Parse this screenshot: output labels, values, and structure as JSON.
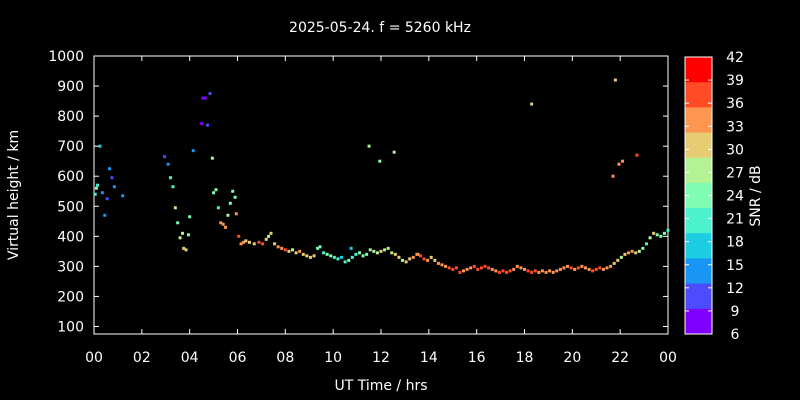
{
  "chart_data": {
    "type": "scatter",
    "title": "2025-05-24. f = 5260 kHz",
    "xlabel": "UT Time / hrs",
    "ylabel": "Virtual height / km",
    "xlim": [
      0,
      24
    ],
    "ylim": [
      75,
      1000
    ],
    "xticks": [
      "00",
      "02",
      "04",
      "06",
      "08",
      "10",
      "12",
      "14",
      "16",
      "18",
      "20",
      "22",
      "00"
    ],
    "yticks": [
      100,
      200,
      300,
      400,
      500,
      600,
      700,
      800,
      900,
      1000
    ],
    "colorbar": {
      "label": "SNR / dB",
      "ticks": [
        6,
        9,
        12,
        15,
        18,
        21,
        24,
        27,
        30,
        33,
        36,
        39,
        42
      ],
      "colors": [
        "#7f00ff",
        "#4c4cfd",
        "#1996f3",
        "#1ccde4",
        "#4cf2ce",
        "#7ffeb3",
        "#b3f295",
        "#e6cd73",
        "#ff964f",
        "#ff4c27",
        "#ff0000"
      ]
    },
    "grid": false,
    "points": [
      [
        0.05,
        540,
        21
      ],
      [
        0.1,
        560,
        24
      ],
      [
        0.15,
        570,
        22
      ],
      [
        0.25,
        700,
        18
      ],
      [
        0.35,
        545,
        15
      ],
      [
        0.45,
        470,
        15
      ],
      [
        0.55,
        525,
        12
      ],
      [
        0.65,
        625,
        13
      ],
      [
        0.75,
        595,
        12
      ],
      [
        0.85,
        565,
        13
      ],
      [
        1.2,
        535,
        14
      ],
      [
        2.95,
        665,
        11
      ],
      [
        3.1,
        640,
        13
      ],
      [
        3.2,
        595,
        20
      ],
      [
        3.3,
        565,
        22
      ],
      [
        3.4,
        495,
        27
      ],
      [
        3.5,
        445,
        23
      ],
      [
        3.6,
        395,
        28
      ],
      [
        3.7,
        410,
        27
      ],
      [
        3.75,
        360,
        29
      ],
      [
        3.85,
        355,
        29
      ],
      [
        3.95,
        405,
        25
      ],
      [
        4.0,
        465,
        24
      ],
      [
        4.15,
        685,
        14
      ],
      [
        4.5,
        775,
        9
      ],
      [
        4.55,
        860,
        8
      ],
      [
        4.65,
        860,
        8
      ],
      [
        4.75,
        770,
        11
      ],
      [
        4.85,
        875,
        10
      ],
      [
        4.95,
        660,
        27
      ],
      [
        5.0,
        545,
        25
      ],
      [
        5.1,
        555,
        24
      ],
      [
        5.2,
        495,
        22
      ],
      [
        5.3,
        445,
        33
      ],
      [
        5.4,
        440,
        35
      ],
      [
        5.5,
        430,
        33
      ],
      [
        5.6,
        470,
        27
      ],
      [
        5.7,
        510,
        25
      ],
      [
        5.8,
        550,
        24
      ],
      [
        5.9,
        530,
        24
      ],
      [
        5.95,
        475,
        33
      ],
      [
        6.05,
        400,
        38
      ],
      [
        6.15,
        375,
        35
      ],
      [
        6.25,
        380,
        34
      ],
      [
        6.35,
        385,
        32
      ],
      [
        6.5,
        380,
        31
      ],
      [
        6.7,
        375,
        32
      ],
      [
        6.9,
        380,
        37
      ],
      [
        7.05,
        375,
        38
      ],
      [
        7.2,
        390,
        30
      ],
      [
        7.3,
        400,
        28
      ],
      [
        7.4,
        410,
        29
      ],
      [
        7.55,
        375,
        31
      ],
      [
        7.7,
        365,
        34
      ],
      [
        7.85,
        360,
        35
      ],
      [
        8.0,
        355,
        36
      ],
      [
        8.15,
        350,
        30
      ],
      [
        8.3,
        355,
        28
      ],
      [
        8.45,
        345,
        32
      ],
      [
        8.6,
        350,
        34
      ],
      [
        8.75,
        340,
        31
      ],
      [
        8.9,
        335,
        29
      ],
      [
        9.05,
        330,
        32
      ],
      [
        9.2,
        335,
        30
      ],
      [
        9.35,
        360,
        24
      ],
      [
        9.45,
        365,
        23
      ],
      [
        9.6,
        345,
        22
      ],
      [
        9.75,
        340,
        25
      ],
      [
        9.9,
        335,
        23
      ],
      [
        10.05,
        330,
        21
      ],
      [
        10.2,
        325,
        20
      ],
      [
        10.35,
        330,
        18
      ],
      [
        10.5,
        315,
        20
      ],
      [
        10.65,
        320,
        23
      ],
      [
        10.8,
        330,
        22
      ],
      [
        10.95,
        340,
        20
      ],
      [
        11.1,
        345,
        23
      ],
      [
        11.25,
        335,
        24
      ],
      [
        11.4,
        340,
        25
      ],
      [
        11.55,
        355,
        26
      ],
      [
        11.7,
        350,
        27
      ],
      [
        11.85,
        345,
        28
      ],
      [
        12.0,
        350,
        29
      ],
      [
        12.15,
        355,
        28
      ],
      [
        12.3,
        360,
        27
      ],
      [
        12.45,
        345,
        26
      ],
      [
        12.6,
        340,
        29
      ],
      [
        12.75,
        330,
        30
      ],
      [
        12.9,
        320,
        28
      ],
      [
        13.05,
        315,
        29
      ],
      [
        13.2,
        325,
        31
      ],
      [
        13.35,
        330,
        33
      ],
      [
        13.5,
        340,
        35
      ],
      [
        13.65,
        335,
        37
      ],
      [
        13.8,
        325,
        36
      ],
      [
        13.95,
        320,
        33
      ],
      [
        14.1,
        330,
        29
      ],
      [
        14.25,
        320,
        31
      ],
      [
        14.4,
        310,
        33
      ],
      [
        14.55,
        305,
        34
      ],
      [
        14.7,
        300,
        35
      ],
      [
        14.85,
        295,
        37
      ],
      [
        15.0,
        290,
        37
      ],
      [
        15.15,
        295,
        36
      ],
      [
        15.3,
        280,
        37
      ],
      [
        15.45,
        285,
        35
      ],
      [
        15.6,
        290,
        34
      ],
      [
        15.75,
        295,
        33
      ],
      [
        15.9,
        300,
        37
      ],
      [
        16.05,
        290,
        36
      ],
      [
        16.2,
        295,
        38
      ],
      [
        16.35,
        300,
        37
      ],
      [
        16.5,
        295,
        36
      ],
      [
        16.65,
        290,
        34
      ],
      [
        16.8,
        285,
        35
      ],
      [
        16.95,
        280,
        36
      ],
      [
        17.1,
        285,
        37
      ],
      [
        17.25,
        280,
        38
      ],
      [
        17.4,
        285,
        36
      ],
      [
        17.55,
        290,
        35
      ],
      [
        17.7,
        300,
        34
      ],
      [
        17.85,
        295,
        33
      ],
      [
        18.0,
        290,
        35
      ],
      [
        18.15,
        285,
        36
      ],
      [
        18.3,
        280,
        37
      ],
      [
        18.45,
        285,
        36
      ],
      [
        18.6,
        280,
        35
      ],
      [
        18.75,
        285,
        34
      ],
      [
        18.9,
        280,
        33
      ],
      [
        19.05,
        285,
        34
      ],
      [
        19.2,
        280,
        35
      ],
      [
        19.35,
        285,
        34
      ],
      [
        19.5,
        290,
        33
      ],
      [
        19.65,
        295,
        34
      ],
      [
        19.8,
        300,
        35
      ],
      [
        19.95,
        295,
        36
      ],
      [
        20.1,
        290,
        35
      ],
      [
        20.25,
        295,
        36
      ],
      [
        20.4,
        300,
        35
      ],
      [
        20.55,
        295,
        34
      ],
      [
        20.7,
        290,
        35
      ],
      [
        20.85,
        285,
        36
      ],
      [
        21.0,
        290,
        37
      ],
      [
        21.15,
        295,
        36
      ],
      [
        21.3,
        290,
        35
      ],
      [
        21.45,
        295,
        34
      ],
      [
        21.6,
        300,
        33
      ],
      [
        21.75,
        310,
        30
      ],
      [
        21.9,
        320,
        29
      ],
      [
        22.05,
        330,
        28
      ],
      [
        22.2,
        340,
        30
      ],
      [
        22.35,
        345,
        33
      ],
      [
        22.5,
        350,
        34
      ],
      [
        22.65,
        345,
        31
      ],
      [
        22.8,
        350,
        27
      ],
      [
        22.95,
        360,
        24
      ],
      [
        23.1,
        375,
        22
      ],
      [
        23.25,
        395,
        26
      ],
      [
        23.4,
        410,
        29
      ],
      [
        23.55,
        405,
        25
      ],
      [
        23.7,
        400,
        24
      ],
      [
        23.85,
        410,
        23
      ],
      [
        24.0,
        420,
        22
      ],
      [
        11.5,
        700,
        28
      ],
      [
        11.95,
        650,
        24
      ],
      [
        12.55,
        680,
        28
      ],
      [
        18.3,
        840,
        31
      ],
      [
        21.8,
        920,
        32
      ],
      [
        21.95,
        640,
        34
      ],
      [
        22.1,
        650,
        33
      ],
      [
        21.7,
        600,
        35
      ],
      [
        22.7,
        670,
        36
      ],
      [
        10.75,
        360,
        16
      ],
      [
        13.55,
        340,
        35
      ]
    ]
  }
}
